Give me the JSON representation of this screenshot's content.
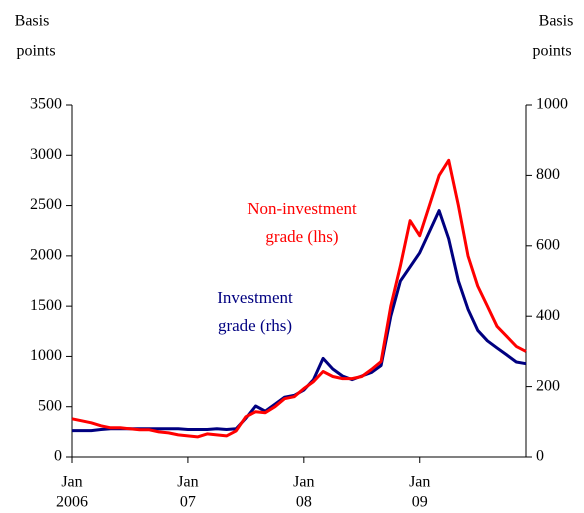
{
  "chart_data": {
    "type": "line",
    "ylabel": [
      "Basis",
      "points"
    ],
    "y2label": [
      "Basis",
      "points"
    ],
    "x": [
      "2006-01",
      "2006-02",
      "2006-03",
      "2006-04",
      "2006-05",
      "2006-06",
      "2006-07",
      "2006-08",
      "2006-09",
      "2006-10",
      "2006-11",
      "2006-12",
      "2007-01",
      "2007-02",
      "2007-03",
      "2007-04",
      "2007-05",
      "2007-06",
      "2007-07",
      "2007-08",
      "2007-09",
      "2007-10",
      "2007-11",
      "2007-12",
      "2008-01",
      "2008-02",
      "2008-03",
      "2008-04",
      "2008-05",
      "2008-06",
      "2008-07",
      "2008-08",
      "2008-09",
      "2008-10",
      "2008-11",
      "2008-12",
      "2009-01",
      "2009-02",
      "2009-03",
      "2009-04",
      "2009-05",
      "2009-06",
      "2009-07",
      "2009-08",
      "2009-09",
      "2009-10",
      "2009-11",
      "2009-12"
    ],
    "series": [
      {
        "name": "Non-investment grade (lhs)",
        "color": "#ff0000",
        "axis": "y",
        "values": [
          380,
          360,
          340,
          310,
          290,
          290,
          280,
          270,
          270,
          250,
          240,
          220,
          210,
          200,
          230,
          220,
          210,
          260,
          400,
          450,
          440,
          500,
          580,
          600,
          680,
          750,
          850,
          800,
          780,
          780,
          800,
          870,
          950,
          1500,
          1900,
          2350,
          2200,
          2500,
          2800,
          2950,
          2500,
          2000,
          1700,
          1500,
          1300,
          1200,
          1100,
          1050
        ]
      },
      {
        "name": "Investment grade (rhs)",
        "color": "#000080",
        "axis": "y2",
        "values": [
          75,
          75,
          75,
          78,
          80,
          80,
          80,
          80,
          80,
          80,
          80,
          80,
          78,
          78,
          78,
          80,
          78,
          80,
          110,
          145,
          130,
          150,
          170,
          175,
          190,
          220,
          280,
          250,
          230,
          220,
          230,
          240,
          260,
          400,
          500,
          540,
          580,
          640,
          700,
          620,
          500,
          420,
          360,
          330,
          310,
          290,
          270,
          265
        ]
      }
    ],
    "annotations": [
      {
        "lines": [
          "Non-investment",
          "grade (lhs)"
        ],
        "color": "#ff0000"
      },
      {
        "lines": [
          "Investment",
          "grade (rhs)"
        ],
        "color": "#000080"
      }
    ],
    "xlim": [
      "2006-01",
      "2009-12"
    ],
    "xticks": [
      {
        "value": "2006-01",
        "label": "Jan",
        "sublabel": "2006"
      },
      {
        "value": "2007-01",
        "label": "Jan",
        "sublabel": "07"
      },
      {
        "value": "2008-01",
        "label": "Jan",
        "sublabel": "08"
      },
      {
        "value": "2009-01",
        "label": "Jan",
        "sublabel": "09"
      }
    ],
    "ylim": [
      0,
      3500
    ],
    "yticks": [
      0,
      500,
      1000,
      1500,
      2000,
      2500,
      3000,
      3500
    ],
    "y2lim": [
      0,
      1000
    ],
    "y2ticks": [
      0,
      200,
      400,
      600,
      800,
      1000
    ]
  }
}
